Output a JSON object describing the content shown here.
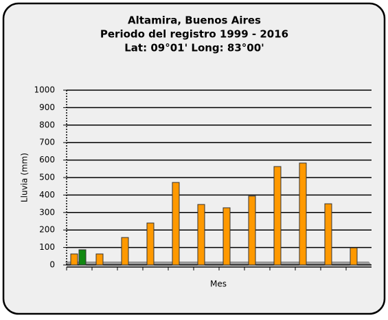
{
  "chart_data": {
    "type": "bar",
    "title": [
      "Altamira, Buenos Aires",
      "Periodo del registro 1999 - 2016",
      "Lat: 09°01' Long: 83°00'"
    ],
    "y_label": "Lluvia (mm)",
    "x_label": "Mes",
    "categories": [
      null,
      null,
      null,
      null,
      null,
      null,
      null,
      null,
      null,
      null,
      null,
      null
    ],
    "series": [
      {
        "color": "#ff9900",
        "values": [
          63,
          63,
          157,
          240,
          472,
          346,
          327,
          394,
          563,
          583,
          350,
          98
        ]
      },
      {
        "color": "#118811",
        "values": [
          87,
          null,
          null,
          null,
          null,
          null,
          null,
          null,
          null,
          null,
          null,
          null
        ]
      }
    ],
    "ylim": [
      0,
      1000
    ],
    "yticks": [
      0,
      100,
      200,
      300,
      400,
      500,
      600,
      700,
      800,
      900,
      1000
    ],
    "grid": true
  }
}
